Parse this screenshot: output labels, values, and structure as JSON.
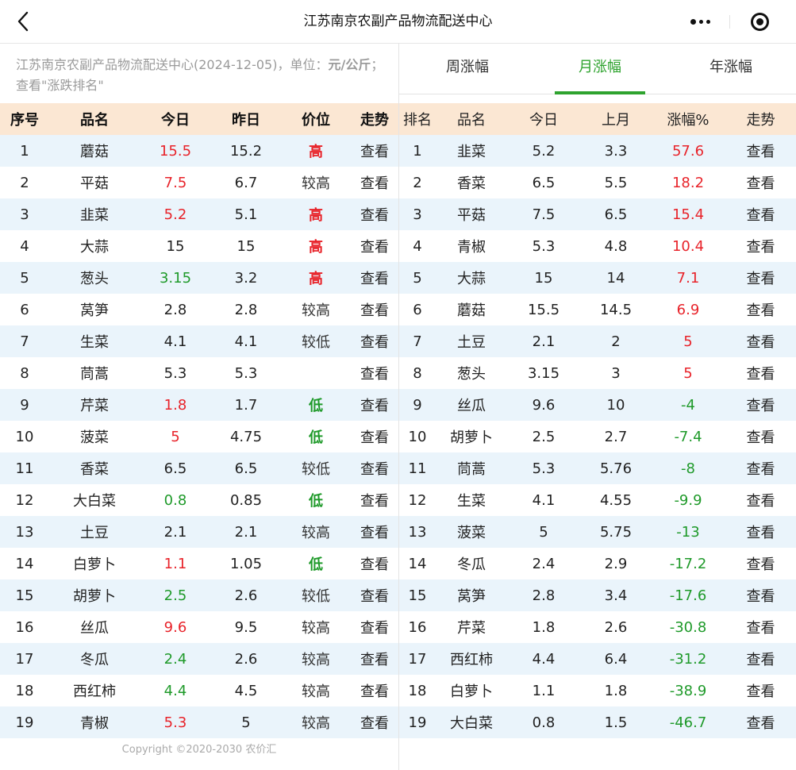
{
  "window": {
    "title": "江苏南京农副产品物流配送中心"
  },
  "left_panel": {
    "note": {
      "prefix": "江苏南京农副产品物流配送中心(2024-12-05)，单位：",
      "unit": "元/公斤",
      "suffix": "；查看\"涨跌排名\""
    },
    "headers": [
      "序号",
      "品名",
      "今日",
      "昨日",
      "价位",
      "走势"
    ],
    "rows": [
      {
        "no": "1",
        "name": "蘑菇",
        "today": "15.5",
        "yesterday": "15.2",
        "level": "高",
        "trend": "查看",
        "change": "up"
      },
      {
        "no": "2",
        "name": "平菇",
        "today": "7.5",
        "yesterday": "6.7",
        "level": "较高",
        "trend": "查看",
        "change": "up"
      },
      {
        "no": "3",
        "name": "韭菜",
        "today": "5.2",
        "yesterday": "5.1",
        "level": "高",
        "trend": "查看",
        "change": "up"
      },
      {
        "no": "4",
        "name": "大蒜",
        "today": "15",
        "yesterday": "15",
        "level": "高",
        "trend": "查看",
        "change": "same"
      },
      {
        "no": "5",
        "name": "葱头",
        "today": "3.15",
        "yesterday": "3.2",
        "level": "高",
        "trend": "查看",
        "change": "down"
      },
      {
        "no": "6",
        "name": "莴笋",
        "today": "2.8",
        "yesterday": "2.8",
        "level": "较高",
        "trend": "查看",
        "change": "same"
      },
      {
        "no": "7",
        "name": "生菜",
        "today": "4.1",
        "yesterday": "4.1",
        "level": "较低",
        "trend": "查看",
        "change": "same"
      },
      {
        "no": "8",
        "name": "茼蒿",
        "today": "5.3",
        "yesterday": "5.3",
        "level": "",
        "trend": "查看",
        "change": "same"
      },
      {
        "no": "9",
        "name": "芹菜",
        "today": "1.8",
        "yesterday": "1.7",
        "level": "低",
        "trend": "查看",
        "change": "up"
      },
      {
        "no": "10",
        "name": "菠菜",
        "today": "5",
        "yesterday": "4.75",
        "level": "低",
        "trend": "查看",
        "change": "up"
      },
      {
        "no": "11",
        "name": "香菜",
        "today": "6.5",
        "yesterday": "6.5",
        "level": "较低",
        "trend": "查看",
        "change": "same"
      },
      {
        "no": "12",
        "name": "大白菜",
        "today": "0.8",
        "yesterday": "0.85",
        "level": "低",
        "trend": "查看",
        "change": "down"
      },
      {
        "no": "13",
        "name": "土豆",
        "today": "2.1",
        "yesterday": "2.1",
        "level": "较高",
        "trend": "查看",
        "change": "same"
      },
      {
        "no": "14",
        "name": "白萝卜",
        "today": "1.1",
        "yesterday": "1.05",
        "level": "低",
        "trend": "查看",
        "change": "up"
      },
      {
        "no": "15",
        "name": "胡萝卜",
        "today": "2.5",
        "yesterday": "2.6",
        "level": "较低",
        "trend": "查看",
        "change": "down"
      },
      {
        "no": "16",
        "name": "丝瓜",
        "today": "9.6",
        "yesterday": "9.5",
        "level": "较高",
        "trend": "查看",
        "change": "up"
      },
      {
        "no": "17",
        "name": "冬瓜",
        "today": "2.4",
        "yesterday": "2.6",
        "level": "较高",
        "trend": "查看",
        "change": "down"
      },
      {
        "no": "18",
        "name": "西红柿",
        "today": "4.4",
        "yesterday": "4.5",
        "level": "较高",
        "trend": "查看",
        "change": "down"
      },
      {
        "no": "19",
        "name": "青椒",
        "today": "5.3",
        "yesterday": "5",
        "level": "较高",
        "trend": "查看",
        "change": "up"
      }
    ],
    "copyright": "Copyright ©2020-2030 农价汇"
  },
  "right_panel": {
    "tabs": [
      {
        "label": "周涨幅",
        "active": false
      },
      {
        "label": "月涨幅",
        "active": true
      },
      {
        "label": "年涨幅",
        "active": false
      }
    ],
    "headers": [
      "排名",
      "品名",
      "今日",
      "上月",
      "涨幅%",
      "走势"
    ],
    "rows": [
      {
        "rank": "1",
        "name": "韭菜",
        "today": "5.2",
        "last_month": "3.3",
        "pct": "57.6",
        "trend": "查看"
      },
      {
        "rank": "2",
        "name": "香菜",
        "today": "6.5",
        "last_month": "5.5",
        "pct": "18.2",
        "trend": "查看"
      },
      {
        "rank": "3",
        "name": "平菇",
        "today": "7.5",
        "last_month": "6.5",
        "pct": "15.4",
        "trend": "查看"
      },
      {
        "rank": "4",
        "name": "青椒",
        "today": "5.3",
        "last_month": "4.8",
        "pct": "10.4",
        "trend": "查看"
      },
      {
        "rank": "5",
        "name": "大蒜",
        "today": "15",
        "last_month": "14",
        "pct": "7.1",
        "trend": "查看"
      },
      {
        "rank": "6",
        "name": "蘑菇",
        "today": "15.5",
        "last_month": "14.5",
        "pct": "6.9",
        "trend": "查看"
      },
      {
        "rank": "7",
        "name": "土豆",
        "today": "2.1",
        "last_month": "2",
        "pct": "5",
        "trend": "查看"
      },
      {
        "rank": "8",
        "name": "葱头",
        "today": "3.15",
        "last_month": "3",
        "pct": "5",
        "trend": "查看"
      },
      {
        "rank": "9",
        "name": "丝瓜",
        "today": "9.6",
        "last_month": "10",
        "pct": "-4",
        "trend": "查看"
      },
      {
        "rank": "10",
        "name": "胡萝卜",
        "today": "2.5",
        "last_month": "2.7",
        "pct": "-7.4",
        "trend": "查看"
      },
      {
        "rank": "11",
        "name": "茼蒿",
        "today": "5.3",
        "last_month": "5.76",
        "pct": "-8",
        "trend": "查看"
      },
      {
        "rank": "12",
        "name": "生菜",
        "today": "4.1",
        "last_month": "4.55",
        "pct": "-9.9",
        "trend": "查看"
      },
      {
        "rank": "13",
        "name": "菠菜",
        "today": "5",
        "last_month": "5.75",
        "pct": "-13",
        "trend": "查看"
      },
      {
        "rank": "14",
        "name": "冬瓜",
        "today": "2.4",
        "last_month": "2.9",
        "pct": "-17.2",
        "trend": "查看"
      },
      {
        "rank": "15",
        "name": "莴笋",
        "today": "2.8",
        "last_month": "3.4",
        "pct": "-17.6",
        "trend": "查看"
      },
      {
        "rank": "16",
        "name": "芹菜",
        "today": "1.8",
        "last_month": "2.6",
        "pct": "-30.8",
        "trend": "查看"
      },
      {
        "rank": "17",
        "name": "西红柿",
        "today": "4.4",
        "last_month": "6.4",
        "pct": "-31.2",
        "trend": "查看"
      },
      {
        "rank": "18",
        "name": "白萝卜",
        "today": "1.1",
        "last_month": "1.8",
        "pct": "-38.9",
        "trend": "查看"
      },
      {
        "rank": "19",
        "name": "大白菜",
        "today": "0.8",
        "last_month": "1.5",
        "pct": "-46.7",
        "trend": "查看"
      }
    ]
  },
  "colors": {
    "up": "#e8232a",
    "down": "#1f9a2a",
    "accent": "#2ea32e",
    "header_bg": "#fbe7d3",
    "stripe_bg": "#eaf4fb"
  },
  "icons": {
    "back": "chevron-left-icon",
    "more": "more-dots-icon",
    "close": "close-circle-icon"
  }
}
